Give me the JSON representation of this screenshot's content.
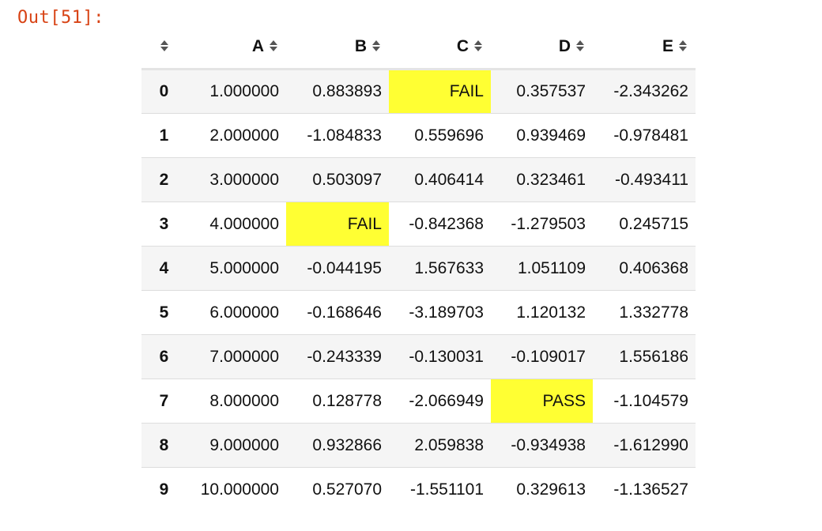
{
  "cell_prompt": "Out[51]:",
  "highlight_color": "#ffff33",
  "sort_icon": "sort-arrows-icon",
  "columns": [
    "A",
    "B",
    "C",
    "D",
    "E"
  ],
  "rows": [
    {
      "index": "0",
      "cells": [
        "1.000000",
        "0.883893",
        "FAIL",
        "0.357537",
        "-2.343262"
      ],
      "highlight": [
        false,
        false,
        true,
        false,
        false
      ]
    },
    {
      "index": "1",
      "cells": [
        "2.000000",
        "-1.084833",
        "0.559696",
        "0.939469",
        "-0.978481"
      ],
      "highlight": [
        false,
        false,
        false,
        false,
        false
      ]
    },
    {
      "index": "2",
      "cells": [
        "3.000000",
        "0.503097",
        "0.406414",
        "0.323461",
        "-0.493411"
      ],
      "highlight": [
        false,
        false,
        false,
        false,
        false
      ]
    },
    {
      "index": "3",
      "cells": [
        "4.000000",
        "FAIL",
        "-0.842368",
        "-1.279503",
        "0.245715"
      ],
      "highlight": [
        false,
        true,
        false,
        false,
        false
      ]
    },
    {
      "index": "4",
      "cells": [
        "5.000000",
        "-0.044195",
        "1.567633",
        "1.051109",
        "0.406368"
      ],
      "highlight": [
        false,
        false,
        false,
        false,
        false
      ]
    },
    {
      "index": "5",
      "cells": [
        "6.000000",
        "-0.168646",
        "-3.189703",
        "1.120132",
        "1.332778"
      ],
      "highlight": [
        false,
        false,
        false,
        false,
        false
      ]
    },
    {
      "index": "6",
      "cells": [
        "7.000000",
        "-0.243339",
        "-0.130031",
        "-0.109017",
        "1.556186"
      ],
      "highlight": [
        false,
        false,
        false,
        false,
        false
      ]
    },
    {
      "index": "7",
      "cells": [
        "8.000000",
        "0.128778",
        "-2.066949",
        "PASS",
        "-1.104579"
      ],
      "highlight": [
        false,
        false,
        false,
        true,
        false
      ]
    },
    {
      "index": "8",
      "cells": [
        "9.000000",
        "0.932866",
        "2.059838",
        "-0.934938",
        "-1.612990"
      ],
      "highlight": [
        false,
        false,
        false,
        false,
        false
      ]
    },
    {
      "index": "9",
      "cells": [
        "10.000000",
        "0.527070",
        "-1.551101",
        "0.329613",
        "-1.136527"
      ],
      "highlight": [
        false,
        false,
        false,
        false,
        false
      ]
    }
  ]
}
